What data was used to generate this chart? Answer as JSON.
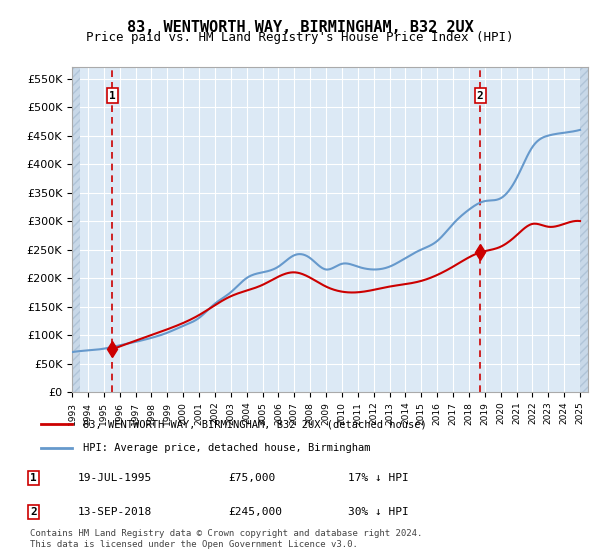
{
  "title": "83, WENTWORTH WAY, BIRMINGHAM, B32 2UX",
  "subtitle": "Price paid vs. HM Land Registry's House Price Index (HPI)",
  "legend_line1": "83, WENTWORTH WAY, BIRMINGHAM, B32 2UX (detached house)",
  "legend_line2": "HPI: Average price, detached house, Birmingham",
  "annotation1_label": "1",
  "annotation1_date": "19-JUL-1995",
  "annotation1_price": "£75,000",
  "annotation1_hpi": "17% ↓ HPI",
  "annotation2_label": "2",
  "annotation2_date": "13-SEP-2018",
  "annotation2_price": "£245,000",
  "annotation2_hpi": "30% ↓ HPI",
  "footer": "Contains HM Land Registry data © Crown copyright and database right 2024.\nThis data is licensed under the Open Government Licence v3.0.",
  "sale1_year": 1995.55,
  "sale1_price": 75000,
  "sale2_year": 2018.71,
  "sale2_price": 245000,
  "hpi_color": "#6699cc",
  "price_color": "#cc0000",
  "background_plot": "#dce9f5",
  "background_hatch": "#c8d8e8",
  "grid_color": "#ffffff",
  "ylim_min": 0,
  "ylim_max": 560000,
  "yticks": [
    0,
    50000,
    100000,
    150000,
    200000,
    250000,
    300000,
    350000,
    400000,
    450000,
    500000,
    550000
  ],
  "xlim_min": 1993,
  "xlim_max": 2025.5,
  "xtick_years": [
    1993,
    1994,
    1995,
    1996,
    1997,
    1998,
    1999,
    2000,
    2001,
    2002,
    2003,
    2004,
    2005,
    2006,
    2007,
    2008,
    2009,
    2010,
    2011,
    2012,
    2013,
    2014,
    2015,
    2016,
    2017,
    2018,
    2019,
    2020,
    2021,
    2022,
    2023,
    2024,
    2025
  ]
}
